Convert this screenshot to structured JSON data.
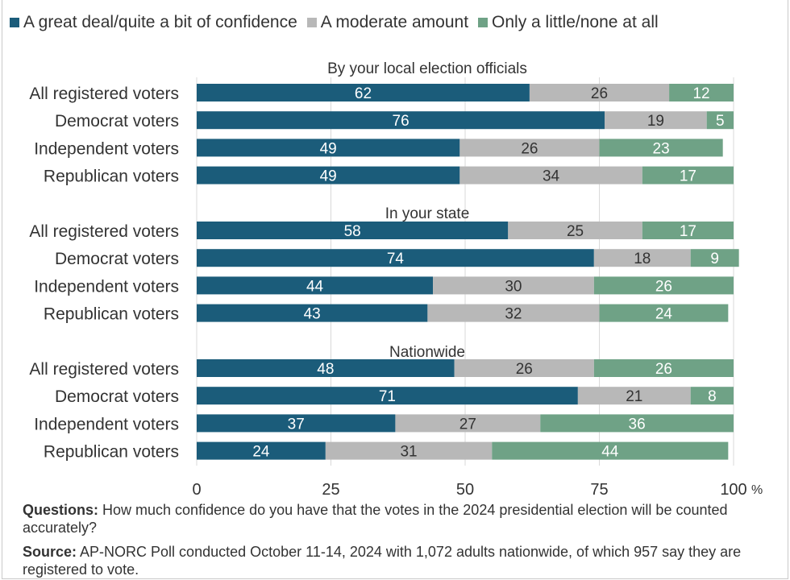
{
  "colors": {
    "great": "#1b5c7a",
    "moderate": "#b8b8b8",
    "little": "#6fa286",
    "grid": "#d9d9d9",
    "text": "#333333"
  },
  "legend": [
    {
      "label": "A great deal/quite a bit of confidence",
      "color": "#1b5c7a"
    },
    {
      "label": "A moderate amount",
      "color": "#b8b8b8"
    },
    {
      "label": "Only a little/none at all",
      "color": "#6fa286"
    }
  ],
  "chart_data": {
    "type": "bar",
    "orientation": "horizontal-stacked",
    "xlim": [
      0,
      100
    ],
    "xticks": [
      "0",
      "25",
      "50",
      "75",
      "100"
    ],
    "xunit": "%",
    "grid": true,
    "legend_position": "top",
    "series_names": [
      "A great deal/quite a bit of confidence",
      "A moderate amount",
      "Only a little/none at all"
    ],
    "groups": [
      {
        "title": "By your local election officials",
        "rows": [
          {
            "label": "All registered voters",
            "values": [
              62,
              26,
              12
            ]
          },
          {
            "label": "Democrat voters",
            "values": [
              76,
              19,
              5
            ]
          },
          {
            "label": "Independent voters",
            "values": [
              49,
              26,
              23
            ]
          },
          {
            "label": "Republican voters",
            "values": [
              49,
              34,
              17
            ]
          }
        ]
      },
      {
        "title": "In your state",
        "rows": [
          {
            "label": "All registered voters",
            "values": [
              58,
              25,
              17
            ]
          },
          {
            "label": "Democrat voters",
            "values": [
              74,
              18,
              9
            ]
          },
          {
            "label": "Independent voters",
            "values": [
              44,
              30,
              26
            ]
          },
          {
            "label": "Republican voters",
            "values": [
              43,
              32,
              24
            ]
          }
        ]
      },
      {
        "title": "Nationwide",
        "rows": [
          {
            "label": "All registered voters",
            "values": [
              48,
              26,
              26
            ]
          },
          {
            "label": "Democrat voters",
            "values": [
              71,
              21,
              8
            ]
          },
          {
            "label": "Independent voters",
            "values": [
              37,
              27,
              36
            ]
          },
          {
            "label": "Republican voters",
            "values": [
              24,
              31,
              44
            ]
          }
        ]
      }
    ]
  },
  "notes": {
    "questions_label": "Questions:",
    "questions_text": " How much confidence do you have that the votes in the 2024 presidential election will be counted accurately?",
    "source_label": "Source:",
    "source_text": " AP-NORC Poll conducted October 11-14, 2024 with 1,072 adults nationwide, of which 957 say they are registered to vote."
  }
}
